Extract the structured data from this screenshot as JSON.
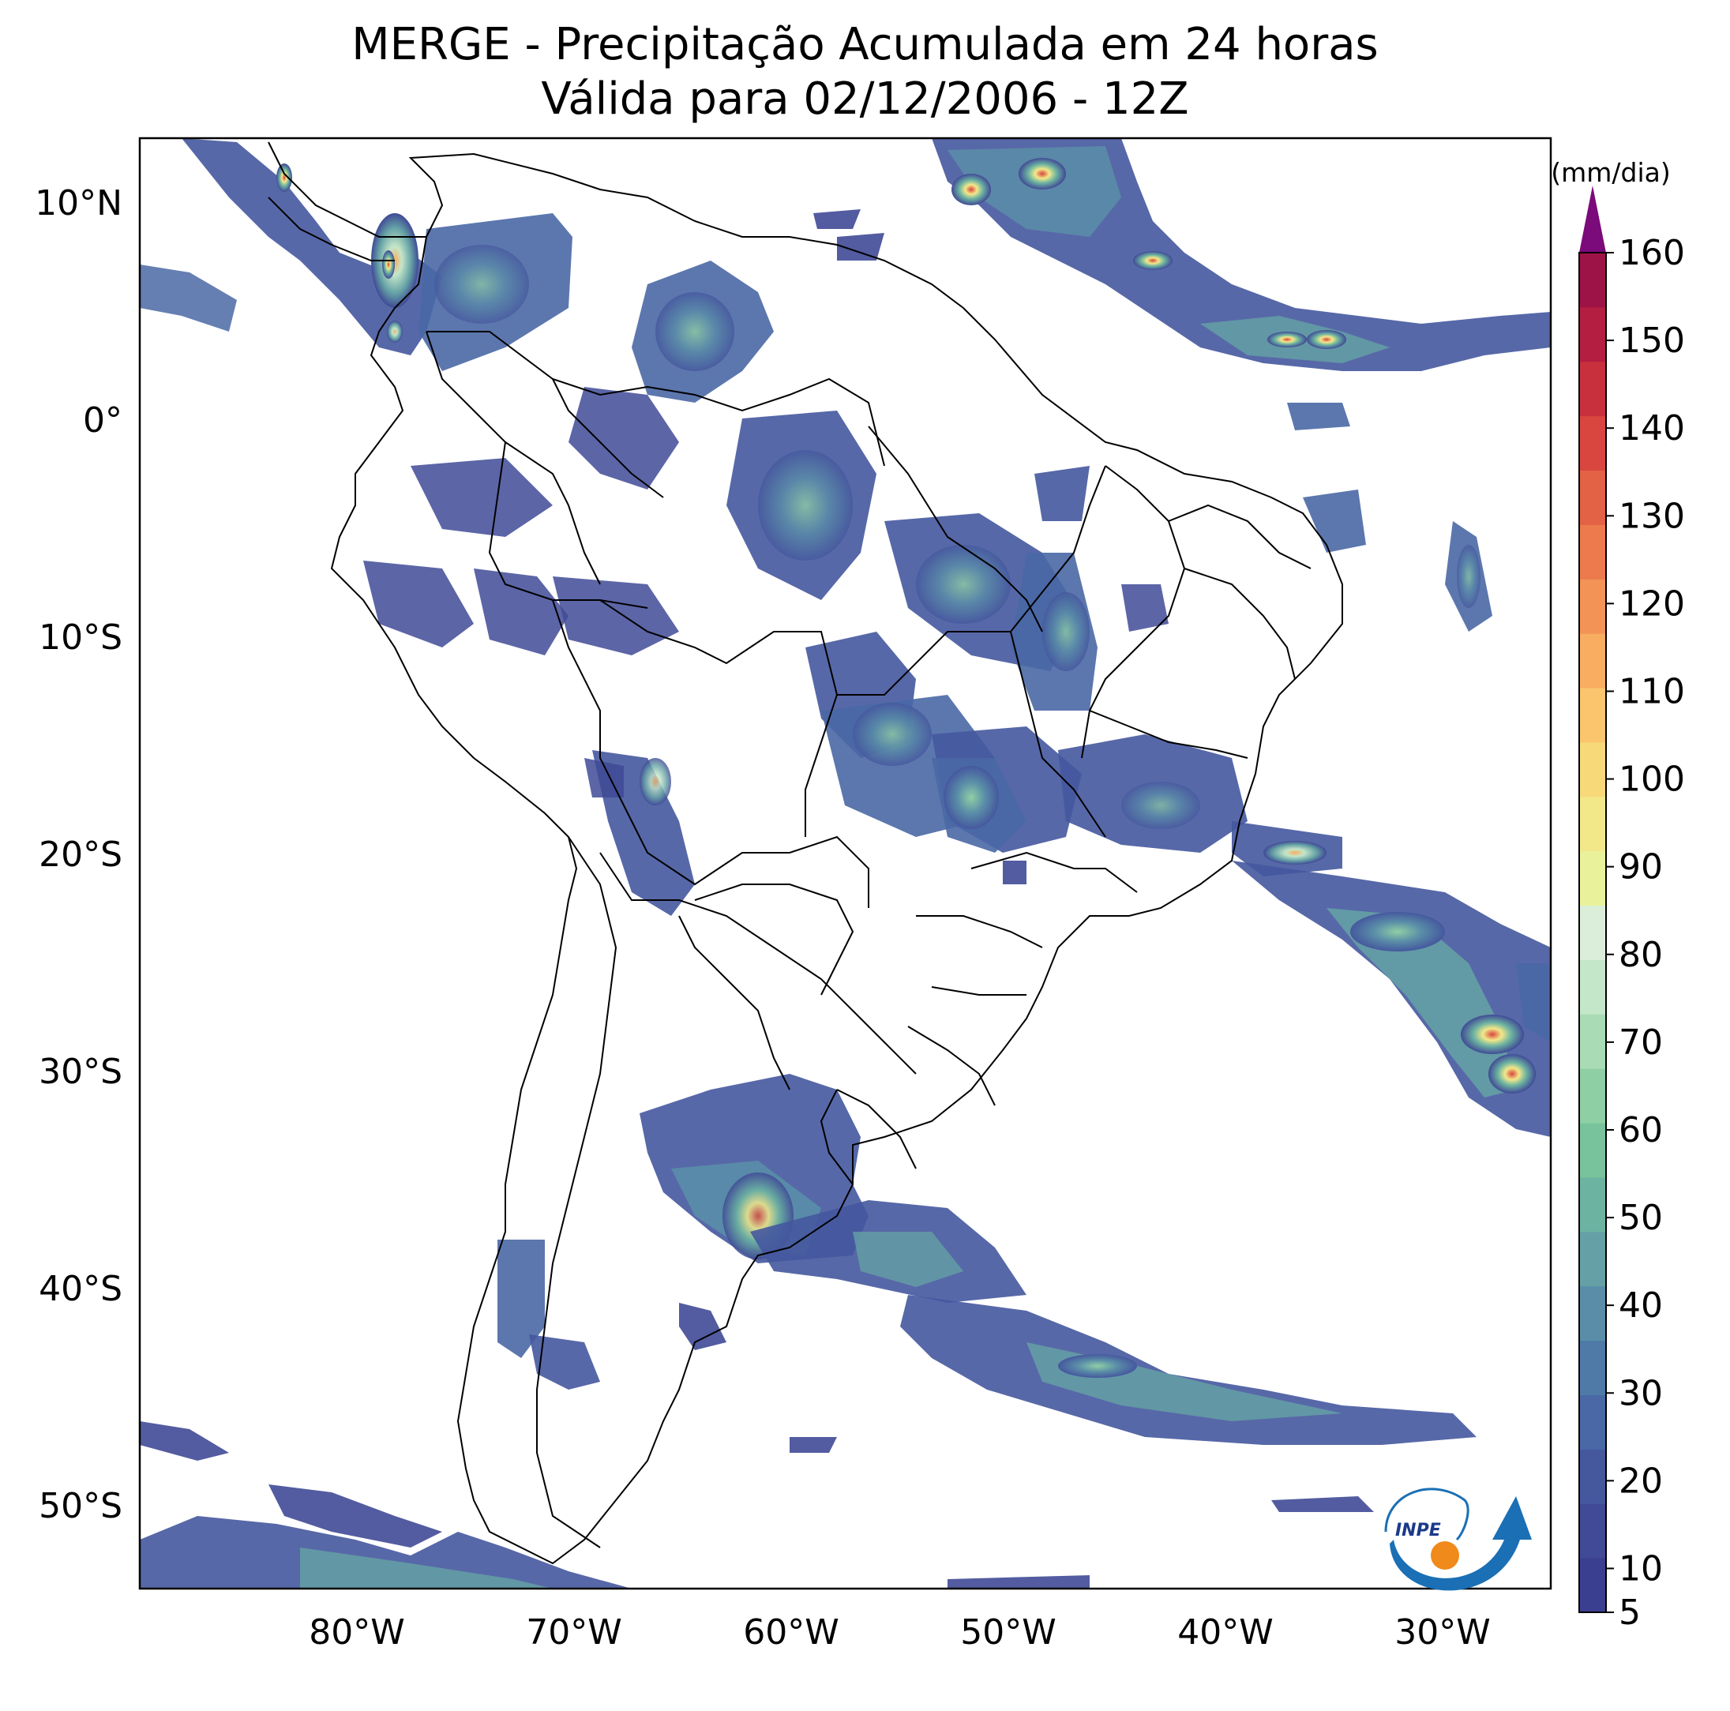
{
  "title": "MERGE - Precipitação Acumulada em 24 horas",
  "subtitle": "Válida para 02/12/2006 - 12Z",
  "colorbar": {
    "units": "(mm/dia)",
    "min": 5,
    "max": 160,
    "extend": "max",
    "tick_labels": [
      "5",
      "10",
      "20",
      "30",
      "40",
      "50",
      "60",
      "70",
      "80",
      "90",
      "100",
      "110",
      "120",
      "130",
      "140",
      "150",
      "160"
    ],
    "tick_values": [
      5,
      10,
      20,
      30,
      40,
      50,
      60,
      70,
      80,
      90,
      100,
      110,
      120,
      130,
      140,
      150,
      160
    ],
    "colors": [
      "#3b3f8f",
      "#404a96",
      "#45589e",
      "#4a68a5",
      "#4f7aa8",
      "#5a8ea8",
      "#64a0a5",
      "#6cb3a1",
      "#78c39c",
      "#8fcfa4",
      "#a9dbb4",
      "#c4e6c9",
      "#dbeed9",
      "#e9f29b",
      "#f3e889",
      "#f8d97a",
      "#fac56d",
      "#f8ad60",
      "#f39356",
      "#ec7a4c",
      "#e36145",
      "#d8463f",
      "#c9303e",
      "#b41e41",
      "#9e1347"
    ],
    "extend_color": "#7b0a7a"
  },
  "map": {
    "extent_lon": [
      -90,
      -25
    ],
    "extent_lat": [
      -56,
      13
    ],
    "lat_labels": [
      {
        "value": 10,
        "label": "10°N"
      },
      {
        "value": 0,
        "label": "0°"
      },
      {
        "value": -10,
        "label": "10°S"
      },
      {
        "value": -20,
        "label": "20°S"
      },
      {
        "value": -30,
        "label": "30°S"
      },
      {
        "value": -40,
        "label": "40°S"
      },
      {
        "value": -50,
        "label": "50°S"
      }
    ],
    "lon_labels": [
      {
        "value": -80,
        "label": "80°W"
      },
      {
        "value": -70,
        "label": "70°W"
      },
      {
        "value": -60,
        "label": "60°W"
      },
      {
        "value": -50,
        "label": "50°W"
      },
      {
        "value": -40,
        "label": "40°W"
      },
      {
        "value": -30,
        "label": "30°W"
      }
    ]
  },
  "logo": {
    "text": "INPE"
  }
}
